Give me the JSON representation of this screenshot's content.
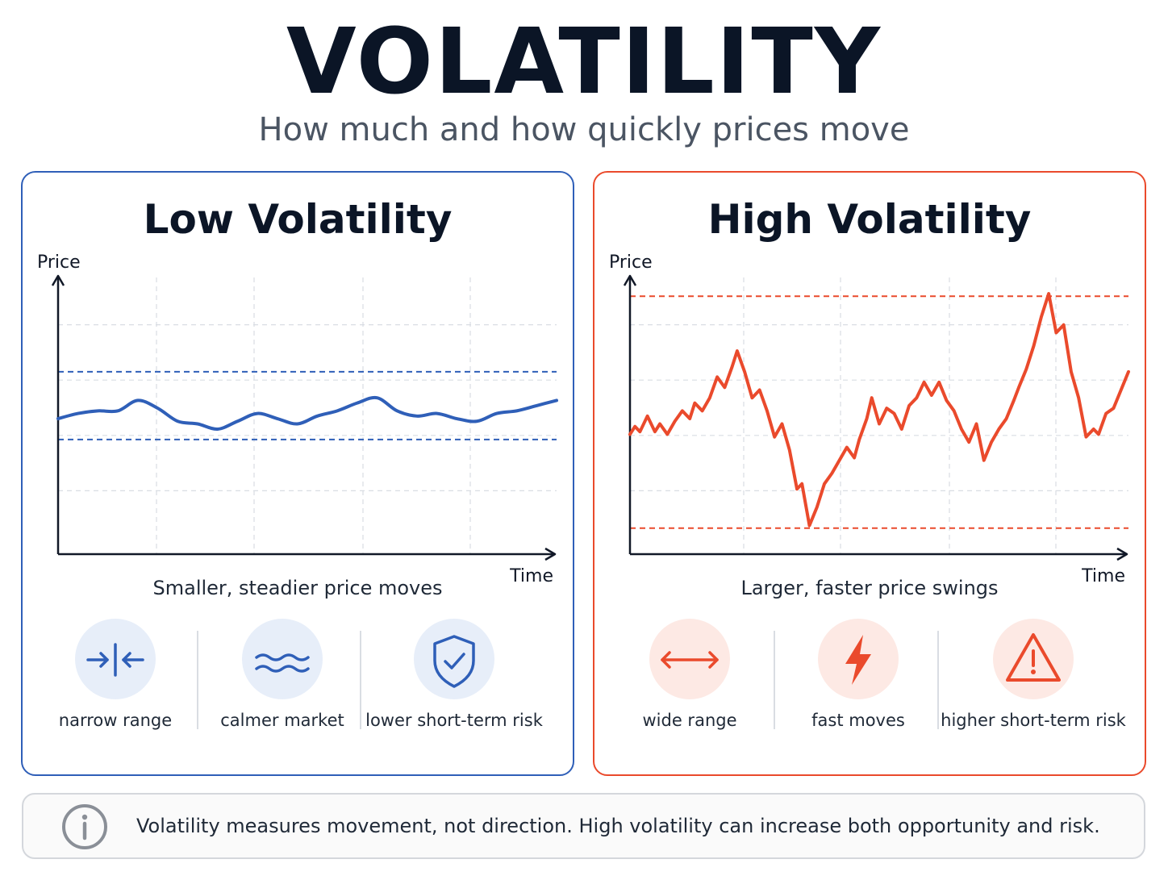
{
  "header": {
    "title": "VOLATILITY",
    "subtitle": "How much and how quickly prices move"
  },
  "colors": {
    "low": "#2f5fb8",
    "high": "#ea4a2c",
    "grid": "#d9dde3",
    "axis": "#111827"
  },
  "chart_data": [
    {
      "type": "line",
      "title": "Low Volatility",
      "xlabel": "Time",
      "ylabel": "Price",
      "caption": "Smaller, steadier price moves",
      "grid": true,
      "xlim": [
        0,
        100
      ],
      "ylim": [
        0,
        100
      ],
      "range_bands": [
        44,
        70
      ],
      "series": [
        {
          "x": [
            0,
            4,
            8,
            12,
            16,
            20,
            24,
            28,
            32,
            36,
            40,
            44,
            48,
            52,
            56,
            60,
            64,
            68,
            72,
            76,
            80,
            84,
            88,
            92,
            96,
            100
          ],
          "y": [
            52,
            54,
            55,
            55,
            59,
            56,
            51,
            50,
            48,
            51,
            54,
            52,
            50,
            53,
            55,
            58,
            60,
            55,
            53,
            54,
            52,
            51,
            54,
            55,
            57,
            59
          ]
        }
      ]
    },
    {
      "type": "line",
      "title": "High Volatility",
      "xlabel": "Time",
      "ylabel": "Price",
      "caption": "Larger, faster price swings",
      "grid": true,
      "xlim": [
        0,
        100
      ],
      "ylim": [
        0,
        100
      ],
      "range_bands": [
        10,
        99
      ],
      "series": [
        {
          "x": [
            0,
            1,
            2,
            3.5,
            5,
            6,
            7.5,
            9,
            10.5,
            12,
            13,
            14.5,
            16,
            17.5,
            19,
            20.5,
            21.5,
            23,
            24.5,
            26,
            27.5,
            29,
            30.5,
            32,
            33.5,
            34.5,
            36,
            37.5,
            39,
            40.5,
            42,
            43.5,
            45,
            46,
            47.5,
            48.5,
            50,
            51.5,
            53,
            54.5,
            56,
            57.5,
            59,
            60.5,
            62,
            63.5,
            65,
            66.5,
            68,
            69.5,
            71,
            72.5,
            74,
            75.5,
            77,
            78,
            79.5,
            81,
            82.5,
            84,
            85.5,
            87,
            88.5,
            90,
            91.5,
            93,
            94,
            95.5,
            97,
            98.5,
            100
          ],
          "y": [
            46,
            49,
            47,
            53,
            47,
            50,
            46,
            51,
            55,
            52,
            58,
            55,
            60,
            68,
            64,
            72,
            78,
            70,
            60,
            63,
            55,
            45,
            50,
            40,
            25,
            27,
            11,
            18,
            27,
            31,
            36,
            41,
            37,
            44,
            52,
            60,
            50,
            56,
            54,
            48,
            57,
            60,
            66,
            61,
            66,
            59,
            55,
            48,
            43,
            50,
            36,
            43,
            48,
            52,
            59,
            64,
            71,
            80,
            91,
            100,
            85,
            88,
            70,
            60,
            45,
            48,
            46,
            54,
            56,
            63,
            70
          ]
        }
      ]
    }
  ],
  "low_panel": {
    "features": [
      {
        "label": "narrow range",
        "icon": "narrow-range-icon"
      },
      {
        "label": "calmer market",
        "icon": "waves-icon"
      },
      {
        "label": "lower short-term risk",
        "icon": "shield-check-icon"
      }
    ]
  },
  "high_panel": {
    "features": [
      {
        "label": "wide range",
        "icon": "double-arrow-icon"
      },
      {
        "label": "fast moves",
        "icon": "lightning-icon"
      },
      {
        "label": "higher short-term risk",
        "icon": "warning-icon"
      }
    ]
  },
  "note": {
    "icon": "info-icon",
    "text": "Volatility measures movement, not direction. High volatility can increase both opportunity and risk."
  }
}
